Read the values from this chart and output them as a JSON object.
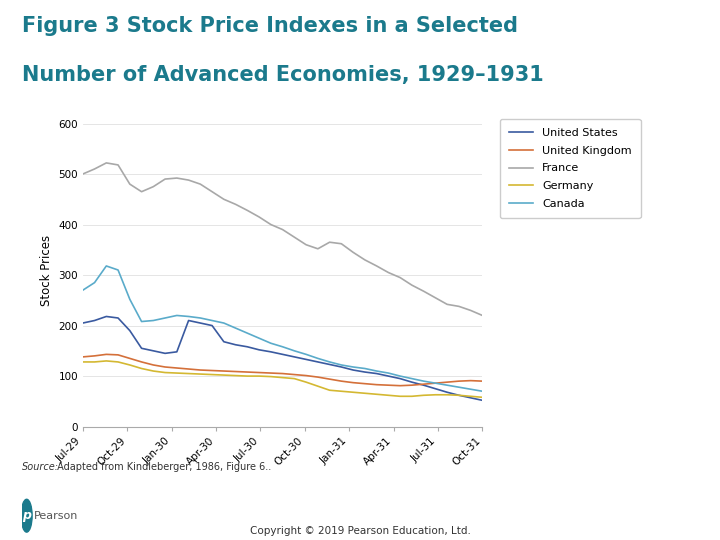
{
  "title_line1": "Figure 3 Stock Price Indexes in a Selected",
  "title_line2": "Number of Advanced Economies, 1929–1931",
  "title_color": "#1b7a8c",
  "ylabel": "Stock Prices",
  "ylim": [
    0,
    620
  ],
  "yticks": [
    0,
    100,
    200,
    300,
    400,
    500,
    600
  ],
  "x_labels": [
    "Jul-29",
    "Oct-29",
    "Jan-30",
    "Apr-30",
    "Jul-30",
    "Oct-30",
    "Jan-31",
    "Apr-31",
    "Jul-31",
    "Oct-31"
  ],
  "source_label": "Source:",
  "source_rest": " Adapted from Kindleberger, 1986, Figure 6..",
  "copyright_text": "Copyright © 2019 Pearson Education, Ltd.",
  "pearson_text": "Pearson",
  "pearson_color": "#1b7a8c",
  "series": {
    "United States": {
      "color": "#3a5aa0",
      "values": [
        205,
        210,
        218,
        215,
        190,
        155,
        150,
        145,
        148,
        210,
        205,
        200,
        168,
        162,
        158,
        152,
        148,
        143,
        138,
        133,
        128,
        123,
        118,
        112,
        108,
        105,
        100,
        95,
        88,
        82,
        75,
        68,
        62,
        57,
        52
      ]
    },
    "United Kingdom": {
      "color": "#d4703a",
      "values": [
        138,
        140,
        143,
        142,
        135,
        128,
        122,
        118,
        116,
        114,
        112,
        111,
        110,
        109,
        108,
        107,
        106,
        105,
        103,
        101,
        98,
        94,
        90,
        87,
        85,
        83,
        82,
        81,
        82,
        84,
        86,
        88,
        90,
        91,
        90
      ]
    },
    "France": {
      "color": "#a8a8a8",
      "values": [
        500,
        510,
        522,
        518,
        480,
        465,
        475,
        490,
        492,
        488,
        480,
        465,
        450,
        440,
        428,
        415,
        400,
        390,
        375,
        360,
        352,
        365,
        362,
        345,
        330,
        318,
        305,
        295,
        280,
        268,
        255,
        242,
        238,
        230,
        220
      ]
    },
    "Germany": {
      "color": "#d4b832",
      "values": [
        128,
        128,
        130,
        128,
        122,
        115,
        110,
        107,
        106,
        105,
        104,
        103,
        102,
        101,
        100,
        100,
        99,
        97,
        95,
        88,
        80,
        72,
        70,
        68,
        66,
        64,
        62,
        60,
        60,
        62,
        63,
        63,
        62,
        60,
        58
      ]
    },
    "Canada": {
      "color": "#5aabca",
      "values": [
        270,
        285,
        318,
        310,
        252,
        208,
        210,
        215,
        220,
        218,
        215,
        210,
        205,
        195,
        185,
        175,
        165,
        158,
        150,
        143,
        135,
        128,
        122,
        118,
        115,
        110,
        106,
        100,
        95,
        90,
        86,
        82,
        78,
        74,
        70
      ]
    }
  },
  "legend_entries": [
    "United States",
    "United Kingdom",
    "France",
    "Germany",
    "Canada"
  ],
  "background_color": "#ffffff",
  "fig_width": 7.2,
  "fig_height": 5.4
}
